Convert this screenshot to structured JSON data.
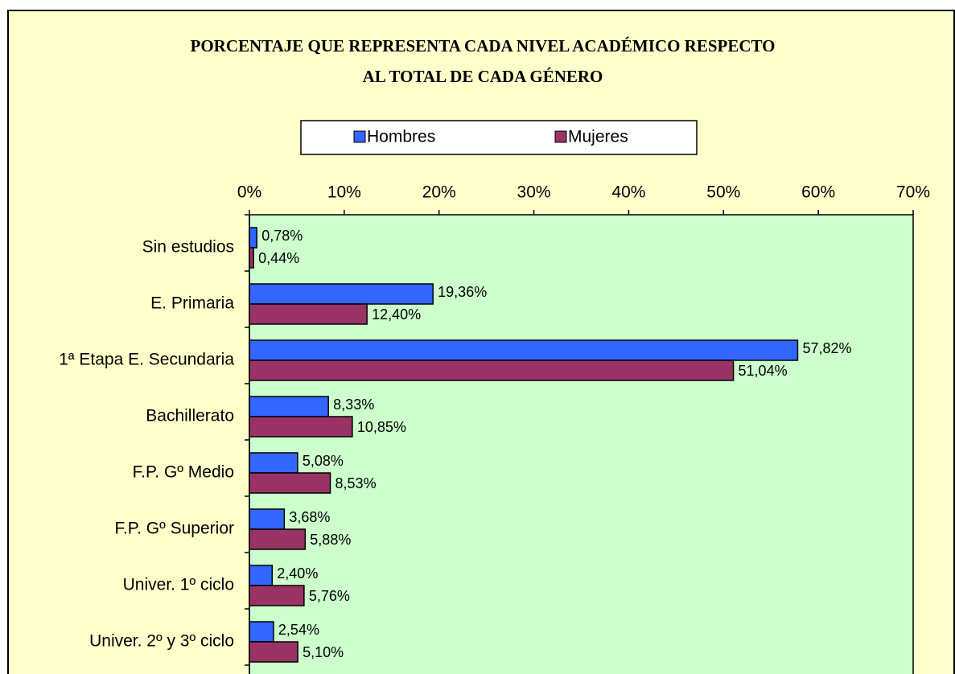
{
  "chart_data": {
    "type": "barh",
    "title": [
      "PORCENTAJE QUE REPRESENTA CADA NIVEL ACADÉMICO RESPECTO",
      "AL TOTAL DE CADA GÉNERO"
    ],
    "categories": [
      "Sin estudios",
      "E. Primaria",
      "1ª Etapa E. Secundaria",
      "Bachillerato",
      "F.P. Gº Medio",
      "F.P. Gº Superior",
      "Univer. 1º ciclo",
      "Univer. 2º y 3º ciclo"
    ],
    "series": [
      {
        "name": "Hombres",
        "color": "#3366ff",
        "values": [
          0.78,
          19.36,
          57.82,
          8.33,
          5.08,
          3.68,
          2.4,
          2.54
        ],
        "value_labels": [
          "0,78%",
          "19,36%",
          "57,82%",
          "8,33%",
          "5,08%",
          "3,68%",
          "2,40%",
          "2,54%"
        ]
      },
      {
        "name": "Mujeres",
        "color": "#993366",
        "values": [
          0.44,
          12.4,
          51.04,
          10.85,
          8.53,
          5.88,
          5.76,
          5.1
        ],
        "value_labels": [
          "0,44%",
          "12,40%",
          "51,04%",
          "10,85%",
          "8,53%",
          "5,88%",
          "5,76%",
          "5,10%"
        ]
      }
    ],
    "xlim": [
      0,
      70
    ],
    "xticks": [
      {
        "value": 0,
        "label": "0%"
      },
      {
        "value": 10,
        "label": "10%"
      },
      {
        "value": 20,
        "label": "20%"
      },
      {
        "value": 30,
        "label": "30%"
      },
      {
        "value": 40,
        "label": "40%"
      },
      {
        "value": 50,
        "label": "50%"
      },
      {
        "value": 60,
        "label": "60%"
      },
      {
        "value": 70,
        "label": "70%"
      }
    ],
    "grid": false,
    "legend": "top"
  }
}
